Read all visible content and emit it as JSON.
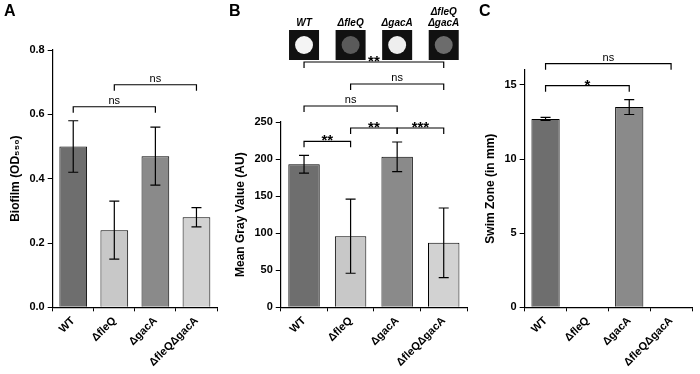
{
  "chart_data": [
    {
      "type": "bar",
      "title": "A",
      "categories": [
        "WT",
        "ΔfleQ",
        "ΔgacA",
        "ΔfleQΔgacA"
      ],
      "values": [
        0.5,
        0.24,
        0.47,
        0.28
      ],
      "errors": [
        0.08,
        0.09,
        0.09,
        0.03
      ],
      "colors": [
        "#6e6e6e",
        "#c8c8c8",
        "#8a8a8a",
        "#d2d2d2"
      ],
      "ylabel": "Biofilm (OD₅₅₀)",
      "ylim": [
        0,
        0.8
      ],
      "yticks": [
        {
          "value": 0,
          "label": "0.0"
        },
        0.2,
        0.4,
        0.6,
        0.8
      ],
      "grid": false,
      "comparisons": [
        {
          "groups": [
            "WT",
            "ΔgacA"
          ],
          "label": "ns"
        },
        {
          "groups": [
            "ΔfleQ",
            "ΔfleQΔgacA"
          ],
          "label": "ns"
        }
      ]
    },
    {
      "type": "bar",
      "title": "B",
      "categories": [
        "WT",
        "ΔfleQ",
        "ΔgacA",
        "ΔfleQΔgacA"
      ],
      "values": [
        193,
        96,
        203,
        87
      ],
      "errors": [
        12,
        50,
        20,
        47
      ],
      "colors": [
        "#6e6e6e",
        "#c8c8c8",
        "#8a8a8a",
        "#d2d2d2"
      ],
      "ylabel": "Mean Gray Value (AU)",
      "ylim": [
        0,
        250
      ],
      "yticks": [
        0,
        50,
        100,
        150,
        200,
        250
      ],
      "grid": false,
      "image_labels": [
        "WT",
        "ΔfleQ",
        "ΔgacA",
        "ΔfleQ\nΔgacA"
      ],
      "comparisons": [
        {
          "groups": [
            "WT",
            "ΔfleQ"
          ],
          "label": "**"
        },
        {
          "groups": [
            "ΔfleQ",
            "ΔgacA"
          ],
          "label": "**"
        },
        {
          "groups": [
            "ΔgacA",
            "ΔfleQΔgacA"
          ],
          "label": "***"
        },
        {
          "groups": [
            "WT",
            "ΔgacA"
          ],
          "label": "ns"
        },
        {
          "groups": [
            "ΔfleQ",
            "ΔfleQΔgacA"
          ],
          "label": "ns"
        },
        {
          "groups": [
            "WT",
            "ΔfleQΔgacA"
          ],
          "label": "**"
        }
      ]
    },
    {
      "type": "bar",
      "title": "C",
      "categories": [
        "WT",
        "ΔfleQ",
        "ΔgacA",
        "ΔfleQΔgacA"
      ],
      "values": [
        12.7,
        0,
        13.5,
        0
      ],
      "errors": [
        0.1,
        0,
        0.5,
        0
      ],
      "colors": [
        "#6e6e6e",
        "#c8c8c8",
        "#8a8a8a",
        "#d2d2d2"
      ],
      "ylabel": "Swim Zone (in mm)",
      "ylim": [
        0,
        16
      ],
      "yticks": [
        0,
        5,
        10,
        15
      ],
      "grid": false,
      "comparisons": [
        {
          "groups": [
            "WT",
            "ΔgacA"
          ],
          "label": "*"
        },
        {
          "groups": [
            "WT",
            "ΔfleQΔgacA"
          ],
          "label": "ns"
        }
      ]
    }
  ]
}
